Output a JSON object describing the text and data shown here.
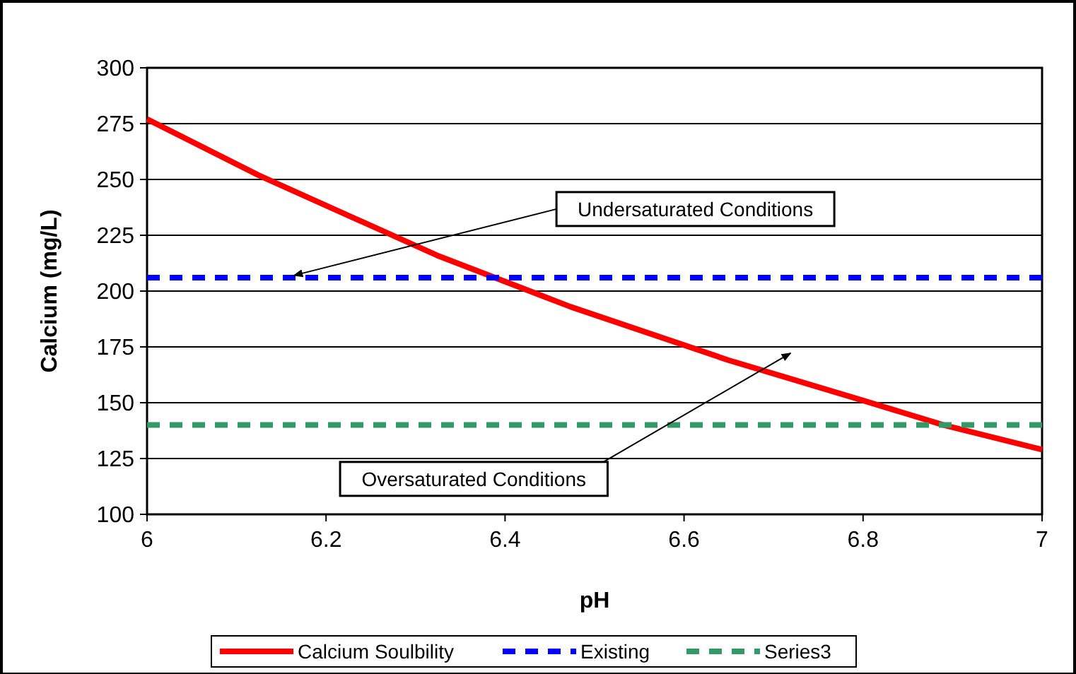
{
  "chart_data": {
    "type": "line",
    "xlabel": "pH",
    "ylabel": "Calcium (mg/L)",
    "xlim": [
      6,
      7
    ],
    "xticks": [
      {
        "value": 6,
        "label": "6"
      },
      {
        "value": 6.2,
        "label": "6.2"
      },
      {
        "value": 6.4,
        "label": "6.4"
      },
      {
        "value": 6.6,
        "label": "6.6"
      },
      {
        "value": 6.8,
        "label": "6.8"
      },
      {
        "value": 7,
        "label": "7"
      }
    ],
    "ylim": [
      100,
      300
    ],
    "yticks": [
      100,
      125,
      150,
      175,
      200,
      225,
      250,
      275,
      300
    ],
    "grid": "y",
    "legend": "bottom",
    "marker": "none",
    "series": [
      {
        "name": "Calcium Soulbility",
        "color": "#ff0000",
        "line_style": "solid",
        "x": [
          6,
          6.124,
          6.324,
          6.473,
          6.65,
          6.8,
          6.89,
          7
        ],
        "values": [
          277,
          252,
          216,
          193,
          169,
          151,
          140,
          129
        ]
      },
      {
        "name": "Existing",
        "color": "#0000ff",
        "line_style": "dashed",
        "x": [
          6,
          7
        ],
        "values": [
          206,
          206
        ]
      },
      {
        "name": "Series3",
        "color": "#339966",
        "line_style": "dashed",
        "x": [
          6,
          7
        ],
        "values": [
          140,
          140
        ]
      }
    ],
    "annotations": [
      {
        "text": "Undersaturated Conditions",
        "x": 6.164,
        "y": 207
      },
      "Oversaturated Conditions"
    ]
  }
}
